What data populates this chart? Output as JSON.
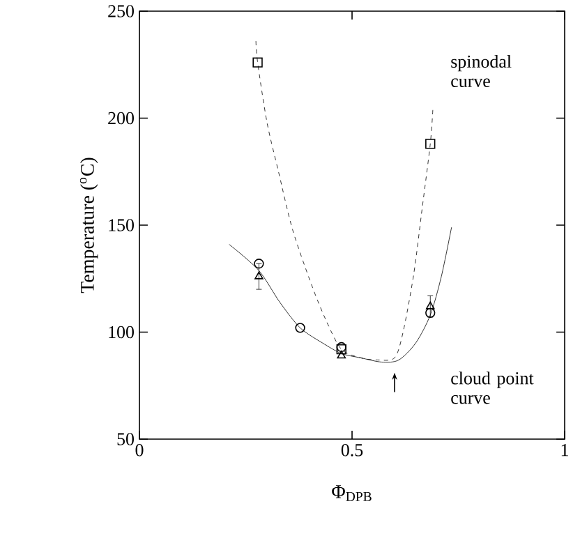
{
  "chart_data": {
    "type": "scatter",
    "xlabel": "Φ$_{DPB}$",
    "ylabel": "Temperature ($^{o}$C)",
    "xlim": [
      0,
      1
    ],
    "ylim": [
      50,
      250
    ],
    "xticks": [
      0,
      0.5,
      1
    ],
    "yticks": [
      50,
      100,
      150,
      200,
      250
    ],
    "grid": false,
    "series": [
      {
        "type": "line",
        "line_style": "dashed",
        "marker": "none",
        "color": "#000000",
        "x": [
          0.274,
          0.278,
          0.3,
          0.327,
          0.36,
          0.405,
          0.44,
          0.475,
          0.52,
          0.56,
          0.6,
          0.62,
          0.645,
          0.665,
          0.684,
          0.69
        ],
        "values": [
          236,
          226,
          198,
          175,
          148,
          122,
          105,
          92,
          88,
          87,
          88,
          100,
          127,
          158,
          188,
          204
        ]
      },
      {
        "type": "line",
        "line_style": "solid",
        "marker": "none",
        "color": "#000000",
        "x": [
          0.211,
          0.28,
          0.33,
          0.378,
          0.43,
          0.475,
          0.52,
          0.57,
          0.61,
          0.65,
          0.684,
          0.71,
          0.734
        ],
        "values": [
          141,
          129,
          114,
          102,
          95,
          90,
          88,
          86,
          87,
          95,
          108,
          126,
          149
        ]
      },
      {
        "marker": "square",
        "color": "#000000",
        "x": [
          0.278,
          0.475,
          0.684
        ],
        "values": [
          226,
          92,
          188
        ]
      },
      {
        "marker": "circle",
        "color": "#000000",
        "x": [
          0.281,
          0.378,
          0.475,
          0.684
        ],
        "values": [
          132,
          102,
          93,
          109
        ]
      },
      {
        "marker": "triangle",
        "color": "#000000",
        "x": [
          0.281,
          0.475,
          0.684
        ],
        "values": [
          126,
          89,
          112
        ],
        "errors": [
          6,
          null,
          5
        ]
      }
    ],
    "annotations": [
      "spinodal curve",
      "cloud point curve"
    ]
  }
}
